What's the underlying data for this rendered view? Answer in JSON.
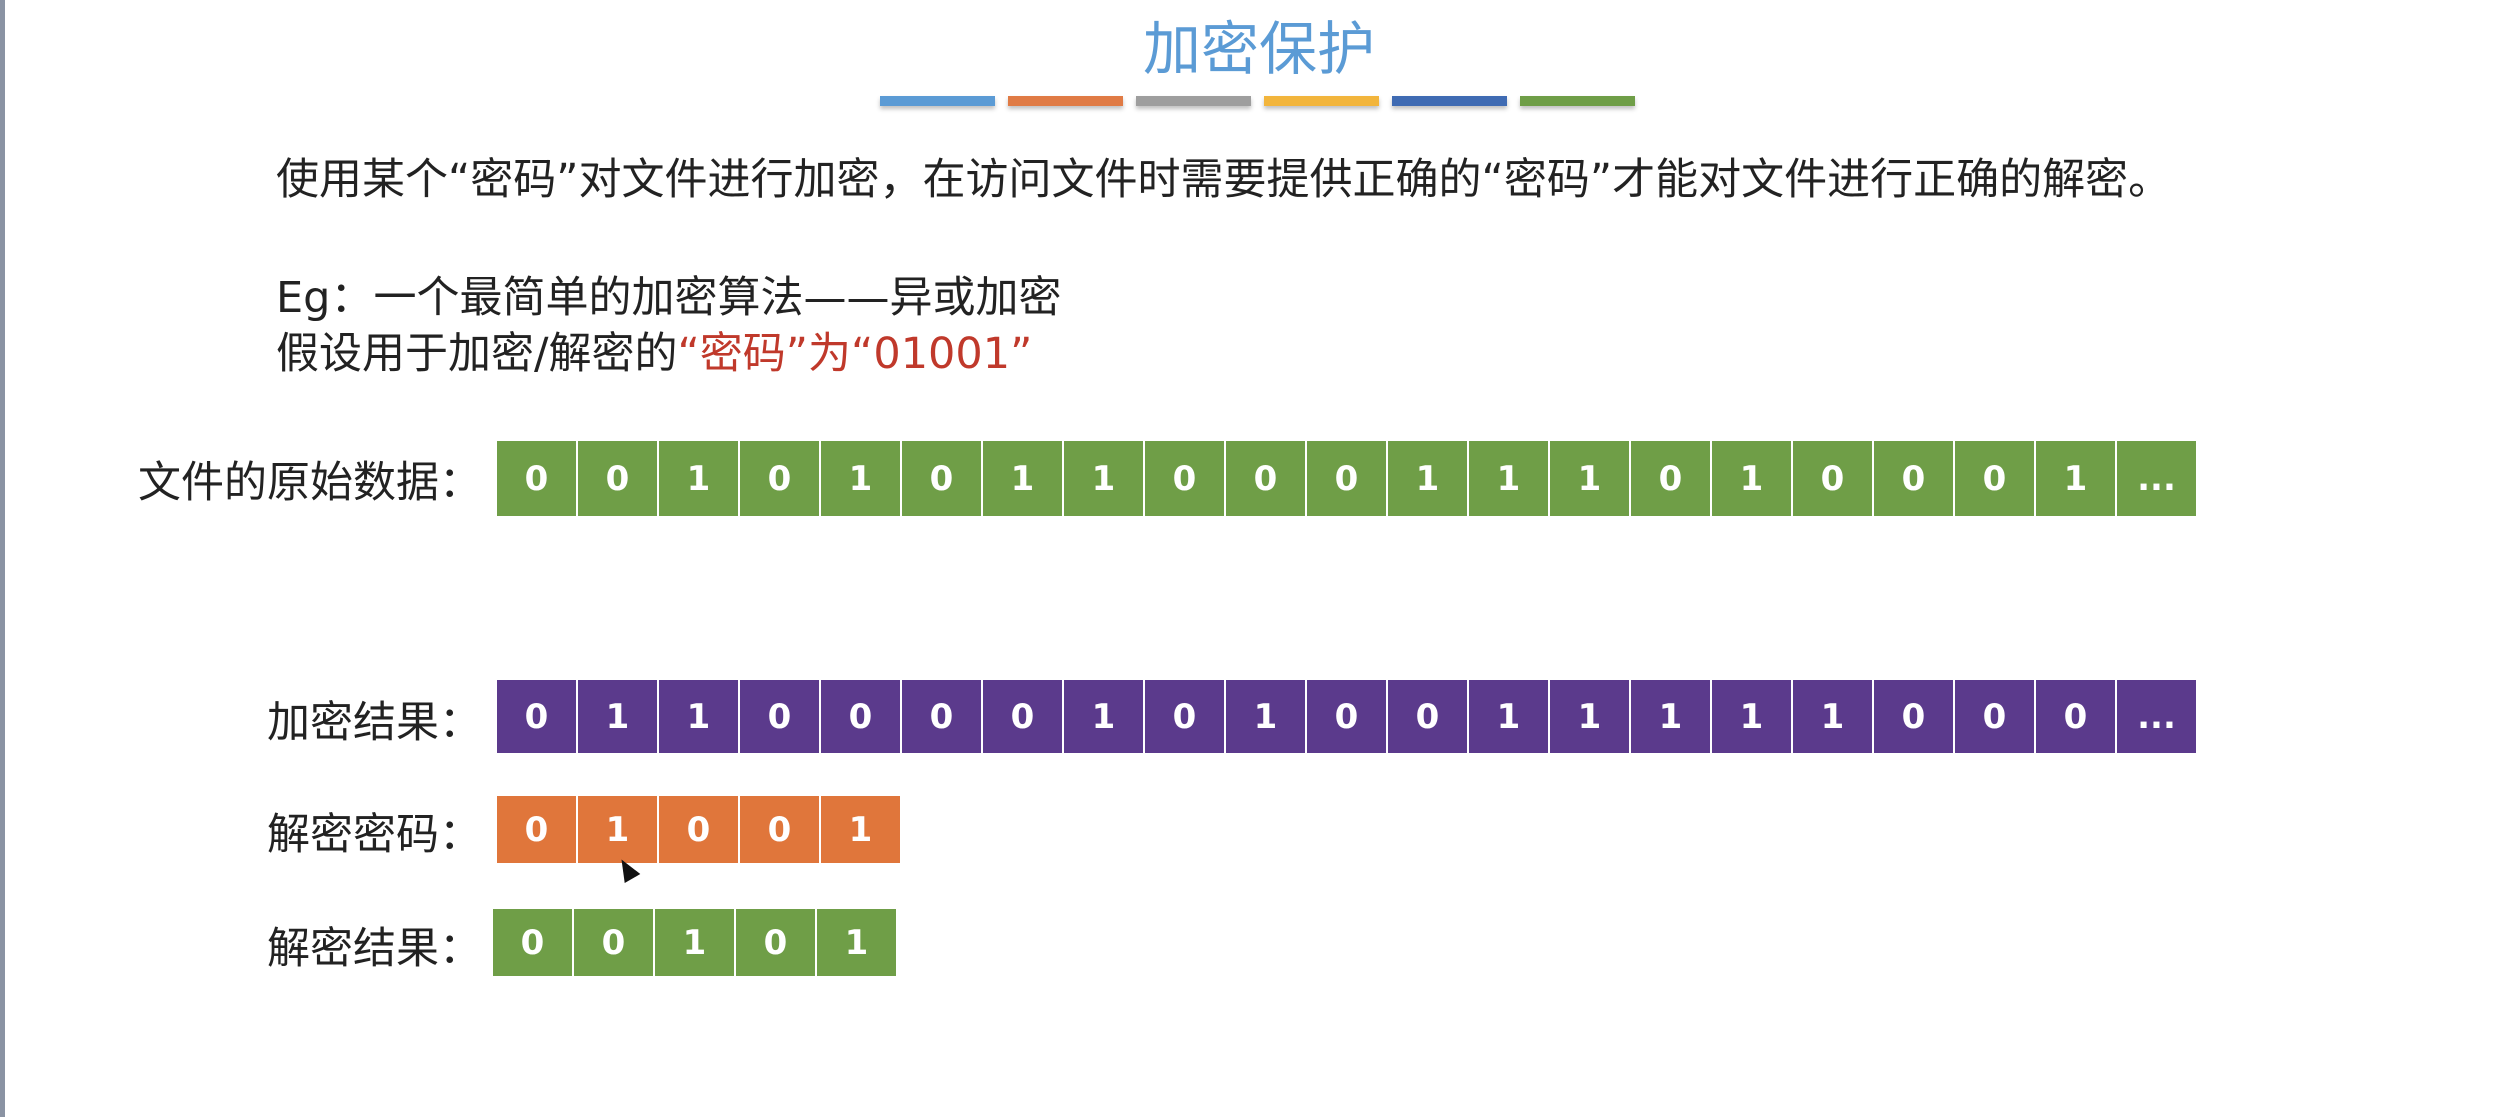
{
  "title": "加密保护",
  "title_bar_colors": [
    "#5b9bd5",
    "#e07b45",
    "#9e9e9e",
    "#f2b53c",
    "#3f6bb3",
    "#6f9e47"
  ],
  "description": "使用某个“密码”对文件进行加密，在访问文件时需要提供正确的“密码”才能对文件进行正确的解密。",
  "example": {
    "line1": "Eg：一个最简单的加密算法——异或加密",
    "line2_prefix": "假设用于加密/解密的",
    "line2_highlight": "“密码”为“01001”"
  },
  "rows": {
    "original": {
      "label": "文件的原始数据：",
      "color": "#6f9e47",
      "bits": [
        "0",
        "0",
        "1",
        "0",
        "1",
        "0",
        "1",
        "1",
        "0",
        "0",
        "0",
        "1",
        "1",
        "1",
        "0",
        "1",
        "0",
        "0",
        "0",
        "1",
        "..."
      ]
    },
    "encrypted": {
      "label": "加密结果：",
      "color": "#5b3a8c",
      "bits": [
        "0",
        "1",
        "1",
        "0",
        "0",
        "0",
        "0",
        "1",
        "0",
        "1",
        "0",
        "0",
        "1",
        "1",
        "1",
        "1",
        "1",
        "0",
        "0",
        "0",
        "..."
      ]
    },
    "key": {
      "label": "解密密码：",
      "color": "#e0763b",
      "bits": [
        "0",
        "1",
        "0",
        "0",
        "1"
      ]
    },
    "decrypted": {
      "label": "解密结果：",
      "color": "#6f9e47",
      "bits": [
        "0",
        "0",
        "1",
        "0",
        "1"
      ]
    }
  },
  "highlight_color": "#c0392b"
}
